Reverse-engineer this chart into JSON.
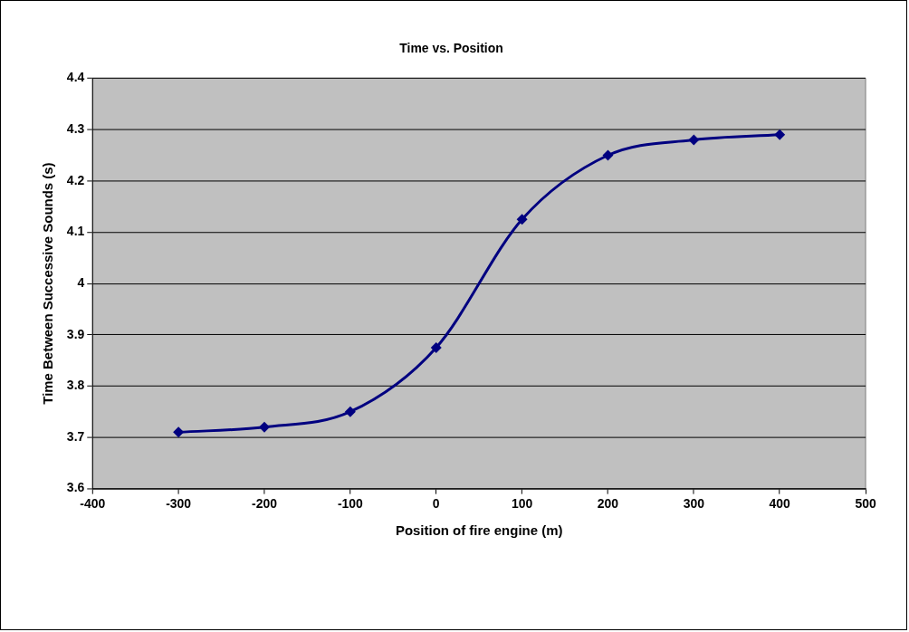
{
  "chart_data": {
    "type": "line",
    "title": "Time vs. Position",
    "xlabel": "Position of fire engine (m)",
    "ylabel": "Time Between Successive Sounds (s)",
    "x": [
      -300,
      -200,
      -100,
      0,
      100,
      200,
      300,
      400
    ],
    "series": [
      {
        "color": "#000080",
        "values": [
          3.71,
          3.72,
          3.75,
          3.875,
          4.125,
          4.25,
          4.28,
          4.29
        ]
      }
    ],
    "xlim": [
      -400,
      500
    ],
    "xticks": [
      -400,
      -300,
      -200,
      -100,
      0,
      100,
      200,
      300,
      400,
      500
    ],
    "ylim": [
      3.6,
      4.4
    ],
    "yticks": [
      3.6,
      3.7,
      3.8,
      3.9,
      4,
      4.1,
      4.2,
      4.3,
      4.4
    ],
    "grid": "y",
    "legend": false,
    "marker": "diamond",
    "line_style": "solid"
  }
}
